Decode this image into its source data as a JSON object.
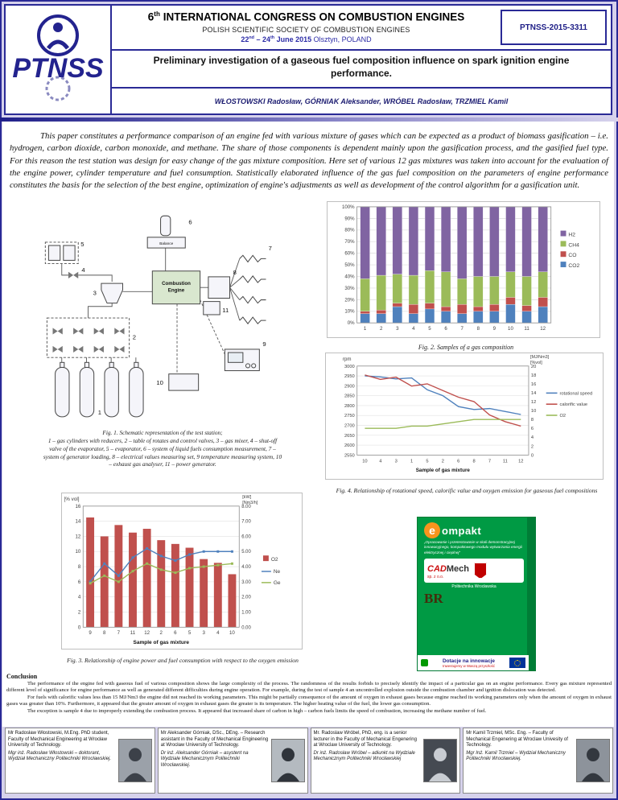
{
  "header": {
    "logo_text": "PTNSS",
    "title_num": "6",
    "title_sup": "th",
    "title_rest": " INTERNATIONAL CONGRESS ON COMBUSTION ENGINES",
    "society": "POLISH SCIENTIFIC SOCIETY OF COMBUSTION ENGINES",
    "date_d1": "22",
    "date_s1": "nd",
    "date_d2": " – 24",
    "date_s2": "th",
    "date_d3": " June 2015 ",
    "date_place": "Olsztyn, POLAND",
    "paper_code": "PTNSS-2015-3311",
    "paper_title_1": "Preliminary investigation of a gaseous fuel composition influence on spark ignition engine",
    "paper_title_2": "performance.",
    "authors": "WŁOSTOWSKI Radosław, GÓRNIAK Aleksander, WRÓBEL Radosław, TRZMIEL Kamil"
  },
  "abstract": "This paper constitutes a performance comparison of an engine fed with various mixture of gases which can be expected as a product of biomass gasification – i.e. hydrogen, carbon dioxide, carbon monoxide, and methane. The share of those components is dependent mainly upon the gasification process, and the gasified fuel type. For this reason the test station was design for easy change of the gas mixture composition. Here set of various 12 gas mixtures was taken into account for the evaluation of the engine power, cylinder temperature and fuel consumption. Statistically elaborated influence of the gas fuel composition on the parameters of engine performance constitutes the basis for the selection of the best engine, optimization of engine's adjustments as well as development of the control algorithm for a gasification unit.",
  "fig1": {
    "labels": [
      "1",
      "2",
      "3",
      "4",
      "5",
      "6",
      "7",
      "8",
      "9",
      "10",
      "11"
    ],
    "balance_label": "Balance",
    "engine_label_1": "Combustion",
    "engine_label_2": "Engine",
    "caption_line1": "Fig. 1. Schematic representation of the test station;",
    "caption_body": "1 – gas cylinders with reducers, 2 – table of rotates and control valves, 3 – gas mixer, 4 – shut-off valve of the evaporator, 5 – evaporator, 6 – system of liquid fuels consumption measurement, 7 – system of generator loading, 8 – electrical values measuring set, 9 temperature measuring system, 10 – exhaust gas analyser, 11 – power generator."
  },
  "chart_data": {
    "fig2": {
      "type": "bar",
      "stacked": true,
      "categories": [
        "1",
        "2",
        "3",
        "4",
        "5",
        "6",
        "7",
        "8",
        "9",
        "10",
        "11",
        "12"
      ],
      "series": [
        {
          "name": "CO2",
          "color": "#4F81BD",
          "values": [
            8,
            8,
            14,
            8,
            12,
            10,
            8,
            10,
            10,
            16,
            10,
            14
          ]
        },
        {
          "name": "CO",
          "color": "#C0504D",
          "values": [
            2,
            3,
            3,
            8,
            5,
            4,
            8,
            4,
            6,
            6,
            5,
            8
          ]
        },
        {
          "name": "CH4",
          "color": "#9BBB59",
          "values": [
            28,
            30,
            25,
            25,
            28,
            30,
            22,
            26,
            24,
            22,
            25,
            22
          ]
        },
        {
          "name": "H2",
          "color": "#8064A2",
          "values": [
            62,
            59,
            58,
            59,
            55,
            56,
            62,
            60,
            60,
            56,
            60,
            56
          ]
        }
      ],
      "legend_order": [
        "H2",
        "CH4",
        "CO",
        "CO2"
      ],
      "ylim": [
        0,
        100
      ],
      "ytick_step": 10,
      "caption": "Fig. 2. Samples of a gas composition"
    },
    "fig4": {
      "type": "line",
      "categories": [
        "10",
        "4",
        "3",
        "1",
        "5",
        "2",
        "6",
        "8",
        "7",
        "11",
        "12"
      ],
      "left_axis": {
        "label": "rpm",
        "min": 2550,
        "max": 3000,
        "step": 50
      },
      "right_axis": {
        "label_lines": [
          "[MJ/Nm3]",
          "[%vol]"
        ],
        "min": 0,
        "max": 20,
        "step": 2
      },
      "series": [
        {
          "name": "rotational speed",
          "color": "#4F81BD",
          "axis": "left",
          "values": [
            2950,
            2945,
            2935,
            2940,
            2880,
            2850,
            2795,
            2780,
            2785,
            2770,
            2755
          ]
        },
        {
          "name": "calorific value",
          "color": "#C0504D",
          "axis": "right",
          "values": [
            18,
            17,
            17.5,
            15.5,
            16,
            14.5,
            13,
            12,
            9,
            7.5,
            6.5
          ]
        },
        {
          "name": "O2",
          "color": "#9BBB59",
          "axis": "right",
          "values": [
            6,
            6,
            6,
            6.5,
            6.5,
            7,
            7.5,
            8,
            8,
            8,
            8
          ]
        }
      ],
      "xlabel": "Sample of gas mixture",
      "caption": "Fig. 4. Relationship of rotational speed, calorific value and oxygen emission for gaseous fuel compositions"
    },
    "fig3": {
      "type": "combo",
      "categories": [
        "9",
        "8",
        "7",
        "11",
        "12",
        "2",
        "6",
        "5",
        "3",
        "4",
        "10"
      ],
      "left_axis": {
        "label": "[% vol]",
        "min": 0,
        "max": 16,
        "step": 2
      },
      "right_axis": {
        "label_lines": [
          "[kW]",
          "[Nm3/h]"
        ],
        "min": 0,
        "max": 8,
        "step": 1,
        "decimals": 2
      },
      "bar_series": {
        "name": "O2",
        "color": "#C0504D",
        "values": [
          14.5,
          12,
          13.5,
          12.5,
          13,
          11.5,
          11,
          10.5,
          9,
          8.5,
          7
        ]
      },
      "line_series": [
        {
          "name": "Ne",
          "color": "#4F81BD",
          "values": [
            3.0,
            4.2,
            3.4,
            4.6,
            5.2,
            4.7,
            4.4,
            4.8,
            5.0,
            5.0,
            5.0
          ]
        },
        {
          "name": "Ge",
          "color": "#9BBB59",
          "values": [
            2.9,
            3.4,
            3.0,
            3.7,
            4.2,
            3.8,
            3.6,
            3.9,
            4.0,
            4.1,
            4.2
          ]
        }
      ],
      "xlabel": "Sample of gas mixture",
      "caption": "Fig. 3. Relationship of engine power and fuel consumption with respect to the oxygen emission"
    }
  },
  "sponsor": {
    "brand_prefix": "e",
    "brand_rest": "ompakt",
    "quote": "„Opracowanie i przetestowanie w skali demonstracyjnej innowacyjnego, kompaktowego modułu wytwarzania energii elektrycznej i cieplnej”",
    "cad": "CAD",
    "mech": "Mech",
    "cad_suffix": "sp. z o.o.",
    "pwr1": "Politechnika",
    "pwr2": "Wrocławska",
    "br": "BR",
    "program": "Dotacje na innowacje",
    "program_sub": "Inwestujemy w Waszą przyszłość"
  },
  "conclusion": {
    "heading": "Conclusion",
    "p1": "The performance of the engine fed with gaseous fuel of various composition shows the large complexity of the process. The randomness of the results forbids to precisely identify the impact of a particular gas on an engine performance. Every gas mixture represented different level of significance for engine performance as well as generated different difficulties during engine operation. For example, during the test of sample 4 an uncontrolled explosion outside the combustion chamber and ignition dislocation was detected.",
    "p2": "For fuels with calorific values less than 15 MJ/Nm3 the engine did not reached its working parameters. This might be partially consequence of the amount of oxygen in exhaust gases because engine reached its working parameters only when the amount of oxygen in exhaust gases was greater than 10%. Furthermore, it appeared that the greater amount of oxygen in exhaust gases the greater is its temperature. The higher heating value of the fuel, the lower gas consumption.",
    "p3": "The exception is sample 4 due to improperly extending the combustion process. It appeared that increased share of carbon in high – carbon fuels limits the speed of combustion, increasing the methane number of fuel."
  },
  "authors_footer": [
    {
      "en": "Mr Radosław Włostowski, M.Eng. PhD student, Faculty of Mechanical Engineering at Wrocław University of Technology.",
      "pl": "Mgr inż. Radosław Włostowski – doktorant, Wydział Mechaniczny Politechniki Wrocławskiej."
    },
    {
      "en": "Mr Aleksander Górniak, DSc., DEng. – Research assistant in the Faculty of Mechanical Engineering at Wrocław University of Technology.",
      "pl": "Dr inż. Aleksander Górniak – asystent na Wydziale Mechanicznym Politechniki Wrocławskiej."
    },
    {
      "en": "Mr. Radoslaw Wróbel, PhD, eng. is a senior lecturer in the Faculty of Mechanical Engenering at Wroclaw University of Technology.",
      "pl": "Dr inż. Radosław Wróbel – adiunkt na Wydziale Mechanicznym Politechniki Wrocławskiej"
    },
    {
      "en": "Mr Kamil Trzmiel, MSc. Eng. – Faculty of Mechanical Engenering at Wroclaw Univesity of Technology.",
      "pl": "Mgr Inż. Kamil Trzmiel – Wydział Mechaniczny Politechniki Wrocławskiej."
    }
  ]
}
